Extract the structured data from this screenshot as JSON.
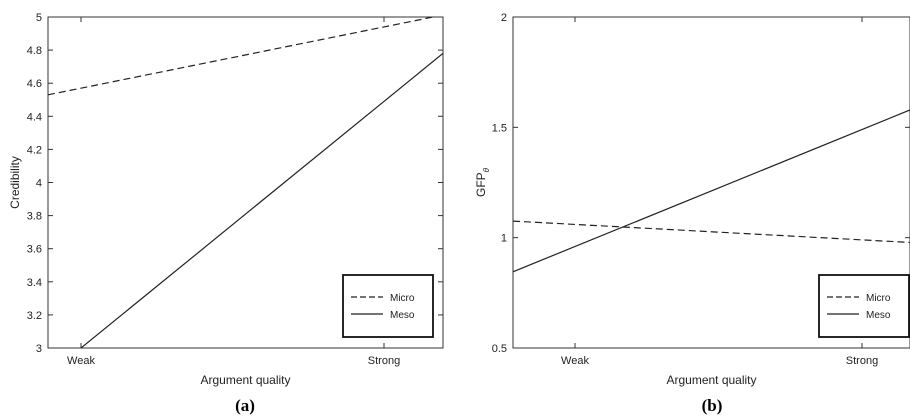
{
  "chart_data": [
    {
      "type": "line",
      "panel_label": "(a)",
      "xlabel": "Argument quality",
      "ylabel": "Credibility",
      "categories": [
        "Weak",
        "Strong"
      ],
      "ylim": [
        3,
        5
      ],
      "yticks": [
        3,
        3.2,
        3.4,
        3.6,
        3.8,
        4,
        4.2,
        4.4,
        4.6,
        4.8,
        5
      ],
      "ytick_labels": [
        "3",
        "3.2",
        "3.4",
        "3.6",
        "3.8",
        "4",
        "4.2",
        "4.4",
        "4.6",
        "4.8",
        "5"
      ],
      "grid": false,
      "legend_position": "bottom-right",
      "series": [
        {
          "name": "Micro",
          "style": "dashed",
          "points": [
            [
              0,
              4.57
            ],
            [
              1,
              4.94
            ]
          ]
        },
        {
          "name": "Meso",
          "style": "solid",
          "points": [
            [
              0,
              3.0
            ],
            [
              1,
              4.49
            ]
          ]
        }
      ]
    },
    {
      "type": "line",
      "panel_label": "(b)",
      "xlabel": "Argument quality",
      "ylabel": "GFP",
      "ylabel_subscript": "θ",
      "categories": [
        "Weak",
        "Strong"
      ],
      "ylim": [
        0.5,
        2
      ],
      "yticks": [
        0.5,
        1,
        1.5,
        2
      ],
      "ytick_labels": [
        "0.5",
        "1",
        "1.5",
        "2"
      ],
      "grid": false,
      "legend_position": "bottom-right",
      "series": [
        {
          "name": "Micro",
          "style": "dashed",
          "points": [
            [
              0,
              1.06
            ],
            [
              1,
              0.99
            ]
          ]
        },
        {
          "name": "Meso",
          "style": "solid",
          "points": [
            [
              0,
              0.96
            ],
            [
              1,
              1.49
            ]
          ]
        }
      ]
    }
  ]
}
